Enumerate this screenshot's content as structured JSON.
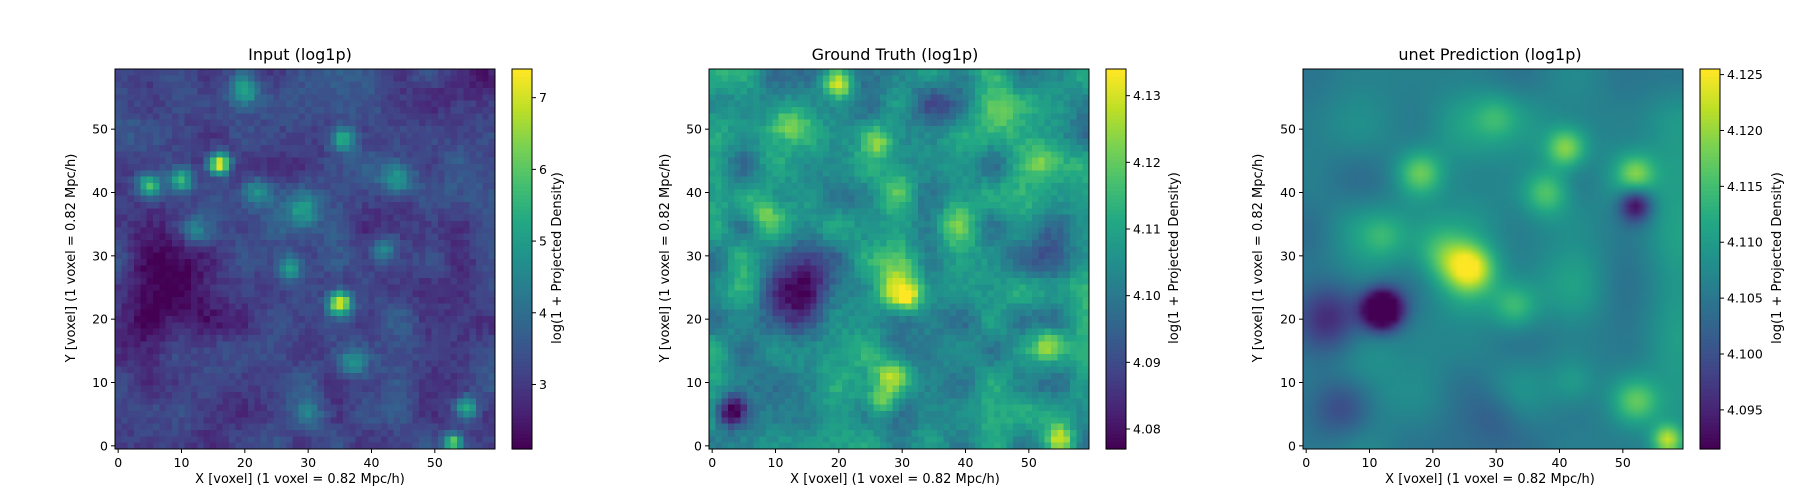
{
  "chart_data": [
    {
      "type": "heatmap",
      "title": "Input (log1p)",
      "xlabel": "X [voxel] (1 voxel = 0.82 Mpc/h)",
      "ylabel": "Y [voxel] (1 voxel = 0.82 Mpc/h)",
      "xlim": [
        -0.5,
        59.5
      ],
      "ylim": [
        -0.5,
        59.5
      ],
      "xticks": [
        0,
        10,
        20,
        30,
        40,
        50
      ],
      "yticks": [
        0,
        10,
        20,
        30,
        40,
        50
      ],
      "grid": false,
      "colormap": "viridis",
      "colorbar": {
        "label": "log(1 + Projected Density)",
        "min": 2.1,
        "max": 7.4,
        "ticks": [
          "3",
          "4",
          "5",
          "6",
          "7"
        ]
      },
      "field": {
        "grid_size": 60,
        "smoothing": "pixelated",
        "seed": 11,
        "base": 0.22,
        "noise_amp": 0.18,
        "features": [
          {
            "x": 16,
            "y": 44.5,
            "sigma": 1.2,
            "amp": 0.85
          },
          {
            "x": 35,
            "y": 22.5,
            "sigma": 1.3,
            "amp": 0.8
          },
          {
            "x": 5,
            "y": 41,
            "sigma": 1.3,
            "amp": 0.55
          },
          {
            "x": 10,
            "y": 42,
            "sigma": 1.3,
            "amp": 0.45
          },
          {
            "x": 35.5,
            "y": 48.5,
            "sigma": 1.4,
            "amp": 0.45
          },
          {
            "x": 44,
            "y": 42,
            "sigma": 1.8,
            "amp": 0.35
          },
          {
            "x": 27,
            "y": 28,
            "sigma": 1.5,
            "amp": 0.35
          },
          {
            "x": 29,
            "y": 37,
            "sigma": 1.8,
            "amp": 0.3
          },
          {
            "x": 42,
            "y": 31,
            "sigma": 1.5,
            "amp": 0.3
          },
          {
            "x": 55,
            "y": 6,
            "sigma": 1.2,
            "amp": 0.45
          },
          {
            "x": 53,
            "y": 0.5,
            "sigma": 1.0,
            "amp": 0.6
          },
          {
            "x": 22,
            "y": 40,
            "sigma": 1.6,
            "amp": 0.3
          },
          {
            "x": 20,
            "y": 56,
            "sigma": 1.5,
            "amp": 0.35
          },
          {
            "x": 12,
            "y": 34,
            "sigma": 1.6,
            "amp": 0.25
          },
          {
            "x": 37,
            "y": 13,
            "sigma": 1.6,
            "amp": 0.3
          },
          {
            "x": 30,
            "y": 5,
            "sigma": 1.8,
            "amp": 0.25
          },
          {
            "x": 8,
            "y": 28,
            "sigma": 6,
            "amp": -0.12
          },
          {
            "x": 10,
            "y": 22,
            "sigma": 5,
            "amp": -0.12
          },
          {
            "x": 20,
            "y": 8,
            "sigma": 5,
            "amp": -0.1
          },
          {
            "x": 43,
            "y": 32,
            "sigma": 5,
            "amp": -0.08
          },
          {
            "x": 55,
            "y": 58,
            "sigma": 4,
            "amp": -0.15
          },
          {
            "x": 2,
            "y": 18,
            "sigma": 4,
            "amp": -0.05
          }
        ]
      }
    },
    {
      "type": "heatmap",
      "title": "Ground Truth (log1p)",
      "xlabel": "X [voxel] (1 voxel = 0.82 Mpc/h)",
      "ylabel": "Y [voxel] (1 voxel = 0.82 Mpc/h)",
      "xlim": [
        -0.5,
        59.5
      ],
      "ylim": [
        -0.5,
        59.5
      ],
      "xticks": [
        0,
        10,
        20,
        30,
        40,
        50
      ],
      "yticks": [
        0,
        10,
        20,
        30,
        40,
        50
      ],
      "grid": false,
      "colormap": "viridis",
      "colorbar": {
        "label": "log(1 + Projected Density)",
        "min": 4.077,
        "max": 4.134,
        "ticks": [
          "4.08",
          "4.09",
          "4.10",
          "4.11",
          "4.12",
          "4.13"
        ]
      },
      "field": {
        "grid_size": 60,
        "smoothing": "pixelated",
        "seed": 23,
        "base": 0.5,
        "noise_amp": 0.32,
        "features": [
          {
            "x": 20,
            "y": 57,
            "sigma": 1.5,
            "amp": 0.45
          },
          {
            "x": 26,
            "y": 48,
            "sigma": 1.8,
            "amp": 0.35
          },
          {
            "x": 29,
            "y": 40,
            "sigma": 2.2,
            "amp": 0.3
          },
          {
            "x": 29,
            "y": 25,
            "sigma": 2.5,
            "amp": 0.35
          },
          {
            "x": 31,
            "y": 23.5,
            "sigma": 1.5,
            "amp": 0.3
          },
          {
            "x": 28.5,
            "y": 11,
            "sigma": 1.8,
            "amp": 0.4
          },
          {
            "x": 27,
            "y": 7,
            "sigma": 1.6,
            "amp": 0.3
          },
          {
            "x": 53,
            "y": 16,
            "sigma": 1.8,
            "amp": 0.35
          },
          {
            "x": 55,
            "y": 1,
            "sigma": 1.6,
            "amp": 0.45
          },
          {
            "x": 12,
            "y": 51,
            "sigma": 2,
            "amp": 0.25
          },
          {
            "x": 8,
            "y": 37,
            "sigma": 2,
            "amp": 0.25
          },
          {
            "x": 38,
            "y": 35,
            "sigma": 2.5,
            "amp": 0.2
          },
          {
            "x": 45,
            "y": 53,
            "sigma": 2.5,
            "amp": 0.2
          },
          {
            "x": 52,
            "y": 45,
            "sigma": 2,
            "amp": 0.2
          },
          {
            "x": 3,
            "y": 5.5,
            "sigma": 1.8,
            "amp": -0.5
          },
          {
            "x": 15,
            "y": 27,
            "sigma": 4,
            "amp": -0.3
          },
          {
            "x": 12,
            "y": 22,
            "sigma": 3,
            "amp": -0.2
          },
          {
            "x": 36,
            "y": 53,
            "sigma": 3,
            "amp": -0.15
          },
          {
            "x": 52,
            "y": 30,
            "sigma": 3,
            "amp": -0.12
          }
        ]
      }
    },
    {
      "type": "heatmap",
      "title": "unet Prediction (log1p)",
      "xlabel": "X [voxel] (1 voxel = 0.82 Mpc/h)",
      "ylabel": "Y [voxel] (1 voxel = 0.82 Mpc/h)",
      "xlim": [
        -0.5,
        59.5
      ],
      "ylim": [
        -0.5,
        59.5
      ],
      "xticks": [
        0,
        10,
        20,
        30,
        40,
        50
      ],
      "yticks": [
        0,
        10,
        20,
        30,
        40,
        50
      ],
      "grid": false,
      "colormap": "viridis",
      "colorbar": {
        "label": "log(1 + Projected Density)",
        "min": 4.0915,
        "max": 4.1255,
        "ticks": [
          "4.095",
          "4.100",
          "4.105",
          "4.110",
          "4.115",
          "4.120",
          "4.125"
        ]
      },
      "field": {
        "grid_size": 60,
        "smoothing": "smooth",
        "seed": 37,
        "base": 0.47,
        "noise_amp": 0.22,
        "features": [
          {
            "x": 26,
            "y": 28,
            "sigma": 2.5,
            "amp": 0.45
          },
          {
            "x": 22,
            "y": 30,
            "sigma": 3,
            "amp": 0.25
          },
          {
            "x": 18,
            "y": 43,
            "sigma": 2.5,
            "amp": 0.35
          },
          {
            "x": 41,
            "y": 47,
            "sigma": 2.2,
            "amp": 0.4
          },
          {
            "x": 38,
            "y": 40,
            "sigma": 2.5,
            "amp": 0.3
          },
          {
            "x": 52,
            "y": 43,
            "sigma": 2,
            "amp": 0.3
          },
          {
            "x": 33,
            "y": 22,
            "sigma": 2.5,
            "amp": 0.25
          },
          {
            "x": 52,
            "y": 7,
            "sigma": 2.5,
            "amp": 0.3
          },
          {
            "x": 57,
            "y": 1,
            "sigma": 1.6,
            "amp": 0.45
          },
          {
            "x": 12,
            "y": 33,
            "sigma": 2.5,
            "amp": 0.15
          },
          {
            "x": 30,
            "y": 52,
            "sigma": 2.5,
            "amp": 0.15
          },
          {
            "x": 42,
            "y": 10,
            "sigma": 2.5,
            "amp": 0.15
          },
          {
            "x": 12,
            "y": 21.5,
            "sigma": 2.2,
            "amp": -0.85
          },
          {
            "x": 4,
            "y": 20,
            "sigma": 4,
            "amp": -0.35
          },
          {
            "x": 6,
            "y": 6,
            "sigma": 3.5,
            "amp": -0.25
          },
          {
            "x": 52,
            "y": 38,
            "sigma": 1.8,
            "amp": -0.45
          },
          {
            "x": 30,
            "y": 5,
            "sigma": 3,
            "amp": -0.1
          }
        ]
      }
    }
  ]
}
